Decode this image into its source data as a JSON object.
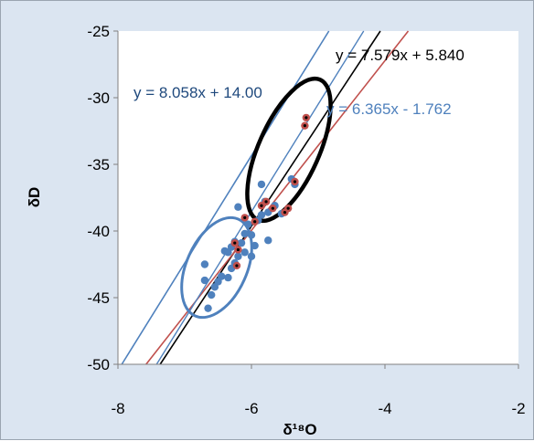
{
  "chart_data": {
    "type": "scatter",
    "title": "",
    "xlabel": "δ¹⁸O",
    "ylabel": "δD",
    "xlim": [
      -8,
      -2
    ],
    "ylim": [
      -50,
      -25
    ],
    "xticks": [
      "-8",
      "-6",
      "-4",
      "-2"
    ],
    "yticks": [
      "-25",
      "-30",
      "-35",
      "-40",
      "-45",
      "-50"
    ],
    "grid": false,
    "colors": {
      "blue_points": "#4f81bd",
      "red_points": "#c0504d",
      "black_line": "#000000",
      "red_line": "#c0504d",
      "blue_line": "#4f81bd",
      "gmwl_line": "#4f81bd"
    },
    "series": [
      {
        "marker": "blue-dot",
        "points": [
          [
            -6.65,
            -45.8
          ],
          [
            -6.6,
            -44.8
          ],
          [
            -6.55,
            -44.2
          ],
          [
            -6.7,
            -43.7
          ],
          [
            -6.5,
            -43.8
          ],
          [
            -6.45,
            -43.4
          ],
          [
            -6.35,
            -43.5
          ],
          [
            -6.3,
            -42.8
          ],
          [
            -6.7,
            -42.5
          ],
          [
            -6.25,
            -42.4
          ],
          [
            -6.2,
            -41.9
          ],
          [
            -6.4,
            -41.5
          ],
          [
            -6.1,
            -41.6
          ],
          [
            -6.3,
            -41.2
          ],
          [
            -6.15,
            -40.9
          ],
          [
            -6.0,
            -40.3
          ],
          [
            -5.95,
            -41.1
          ],
          [
            -6.25,
            -40.8
          ],
          [
            -6.1,
            -40.2
          ],
          [
            -6.05,
            -39.5
          ],
          [
            -5.9,
            -39.2
          ],
          [
            -5.85,
            -38.8
          ],
          [
            -5.75,
            -38.6
          ],
          [
            -6.2,
            -38.2
          ],
          [
            -5.65,
            -38.1
          ],
          [
            -5.8,
            -37.8
          ],
          [
            -5.55,
            -38.7
          ],
          [
            -5.75,
            -40.7
          ],
          [
            -5.85,
            -36.5
          ],
          [
            -5.35,
            -36.5
          ],
          [
            -5.4,
            -36.1
          ],
          [
            -6.0,
            -41.9
          ],
          [
            -6.35,
            -41.6
          ]
        ]
      },
      {
        "marker": "red-ringed-dot",
        "points": [
          [
            -6.22,
            -42.6
          ],
          [
            -6.2,
            -41.4
          ],
          [
            -6.25,
            -40.9
          ],
          [
            -6.1,
            -39.0
          ],
          [
            -5.95,
            -39.3
          ],
          [
            -5.85,
            -38.1
          ],
          [
            -5.78,
            -37.8
          ],
          [
            -5.68,
            -38.3
          ],
          [
            -5.5,
            -38.6
          ],
          [
            -5.45,
            -38.3
          ],
          [
            -5.35,
            -36.3
          ],
          [
            -5.2,
            -32.1
          ],
          [
            -5.18,
            -31.5
          ]
        ]
      }
    ],
    "trendlines": [
      {
        "label": "y = 7.579x + 5.840",
        "slope": 7.579,
        "intercept": 5.84,
        "color": "#000000"
      },
      {
        "label": "y = 8.058x + 14.00",
        "slope": 8.058,
        "intercept": 14.0,
        "color": "#4f81bd"
      },
      {
        "label": "y = 6.365x - 1.762",
        "slope": 6.365,
        "intercept": -1.762,
        "color": "#c0504d"
      }
    ],
    "equation_labels": [
      {
        "text": "y = 7.579x + 5.840",
        "color": "#000000"
      },
      {
        "text": "y = 8.058x + 14.00",
        "color": "#1f497d"
      },
      {
        "text": "y = 6.365x - 1.762",
        "color": "#4f81bd"
      }
    ]
  }
}
